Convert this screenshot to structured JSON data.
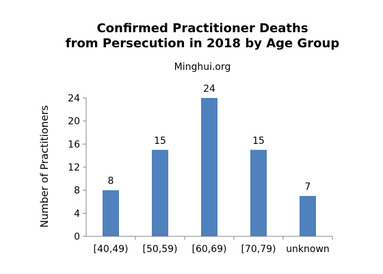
{
  "chart_data": {
    "type": "bar",
    "title": "Confirmed Practitioner Deaths",
    "title_line2": "from Persecution in 2018 by Age Group",
    "subtitle": "Minghui.org",
    "xlabel": "",
    "ylabel": "Number of Practitioners",
    "categories": [
      "[40,49)",
      "[50,59)",
      "[60,69)",
      "[70,79)",
      "unknown"
    ],
    "values": [
      8,
      15,
      24,
      15,
      7
    ],
    "ylim": [
      0,
      24
    ],
    "yticks": [
      0,
      4,
      8,
      12,
      16,
      20,
      24
    ],
    "data_labels": true,
    "grid": false,
    "legend": "none",
    "bar_color": "#4f81bd",
    "axis_color": "#868686"
  }
}
